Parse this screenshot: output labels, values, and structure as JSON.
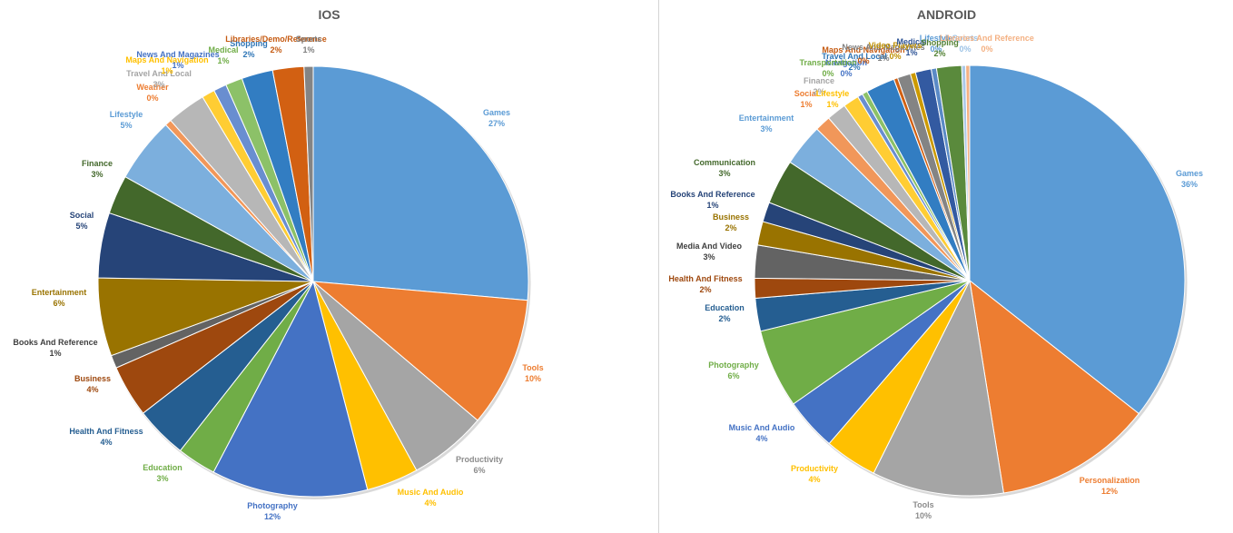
{
  "chart_data": [
    {
      "type": "pie",
      "title": "IOS",
      "slices": [
        {
          "label": "Games",
          "value": 27,
          "pct": "27%",
          "color": "#5b9bd5"
        },
        {
          "label": "Tools",
          "value": 10,
          "pct": "10%",
          "color": "#ed7d31"
        },
        {
          "label": "Productivity",
          "value": 6,
          "pct": "6%",
          "color": "#a5a5a5"
        },
        {
          "label": "Music And Audio",
          "value": 4,
          "pct": "4%",
          "color": "#ffc000"
        },
        {
          "label": "Photography",
          "value": 12,
          "pct": "12%",
          "color": "#4472c4"
        },
        {
          "label": "Education",
          "value": 3,
          "pct": "3%",
          "color": "#70ad47"
        },
        {
          "label": "Health And Fitness",
          "value": 4,
          "pct": "4%",
          "color": "#255e91"
        },
        {
          "label": "Business",
          "value": 4,
          "pct": "4%",
          "color": "#9e480e"
        },
        {
          "label": "Books And Reference",
          "value": 1,
          "pct": "1%",
          "color": "#636363"
        },
        {
          "label": "Entertainment",
          "value": 6,
          "pct": "6%",
          "color": "#997300"
        },
        {
          "label": "Social",
          "value": 5,
          "pct": "5%",
          "color": "#264478"
        },
        {
          "label": "Finance",
          "value": 3,
          "pct": "3%",
          "color": "#43682b"
        },
        {
          "label": "Lifestyle",
          "value": 5,
          "pct": "5%",
          "color": "#7cafdd"
        },
        {
          "label": "Weather",
          "value": 0.5,
          "pct": "0%",
          "color": "#f1975a"
        },
        {
          "label": "Travel And Local",
          "value": 3,
          "pct": "3%",
          "color": "#b7b7b7"
        },
        {
          "label": "Maps And Navigation",
          "value": 1,
          "pct": "1%",
          "color": "#ffcd33"
        },
        {
          "label": "News And Magazines",
          "value": 1,
          "pct": "1%",
          "color": "#698ed0"
        },
        {
          "label": "Medical",
          "value": 1.3,
          "pct": "1%",
          "color": "#8cc168"
        },
        {
          "label": "Shopping",
          "value": 2.4,
          "pct": "2%",
          "color": "#327dc2"
        },
        {
          "label": "Libraries/Demo/Reference",
          "value": 2.4,
          "pct": "2%",
          "color": "#d26012"
        },
        {
          "label": "Sports",
          "value": 0.7,
          "pct": "1%",
          "color": "#848484"
        }
      ]
    },
    {
      "type": "pie",
      "title": "ANDROID",
      "slices": [
        {
          "label": "Games",
          "value": 36,
          "pct": "36%",
          "color": "#5b9bd5"
        },
        {
          "label": "Personalization",
          "value": 12,
          "pct": "12%",
          "color": "#ed7d31"
        },
        {
          "label": "Tools",
          "value": 10,
          "pct": "10%",
          "color": "#a5a5a5"
        },
        {
          "label": "Productivity",
          "value": 4,
          "pct": "4%",
          "color": "#ffc000"
        },
        {
          "label": "Music And Audio",
          "value": 4,
          "pct": "4%",
          "color": "#4472c4"
        },
        {
          "label": "Photography",
          "value": 6,
          "pct": "6%",
          "color": "#70ad47"
        },
        {
          "label": "Education",
          "value": 2.5,
          "pct": "2%",
          "color": "#255e91"
        },
        {
          "label": "Health And Fitness",
          "value": 1.5,
          "pct": "2%",
          "color": "#9e480e"
        },
        {
          "label": "Media And Video",
          "value": 2.5,
          "pct": "3%",
          "color": "#636363"
        },
        {
          "label": "Business",
          "value": 1.8,
          "pct": "2%",
          "color": "#997300"
        },
        {
          "label": "Books And Reference",
          "value": 1.5,
          "pct": "1%",
          "color": "#264478"
        },
        {
          "label": "Communication",
          "value": 3.4,
          "pct": "3%",
          "color": "#43682b"
        },
        {
          "label": "Entertainment",
          "value": 3.2,
          "pct": "3%",
          "color": "#7cafdd"
        },
        {
          "label": "Social",
          "value": 1.2,
          "pct": "1%",
          "color": "#f1975a"
        },
        {
          "label": "Finance",
          "value": 1.5,
          "pct": "2%",
          "color": "#b7b7b7"
        },
        {
          "label": "Lifestyle",
          "value": 1.2,
          "pct": "1%",
          "color": "#ffcd33"
        },
        {
          "label": "Navigation",
          "value": 0.4,
          "pct": "0%",
          "color": "#698ed0"
        },
        {
          "label": "Transportation",
          "value": 0.4,
          "pct": "0%",
          "color": "#8cc168"
        },
        {
          "label": "Travel And Local",
          "value": 2.2,
          "pct": "2%",
          "color": "#327dc2"
        },
        {
          "label": "Maps And Navigation",
          "value": 0.3,
          "pct": "0%",
          "color": "#d26012"
        },
        {
          "label": "News And Magazines",
          "value": 1.0,
          "pct": "1%",
          "color": "#848484"
        },
        {
          "label": "Video Players",
          "value": 0.4,
          "pct": "0%",
          "color": "#cc9a00"
        },
        {
          "label": "Medical",
          "value": 1.2,
          "pct": "1%",
          "color": "#335aa1"
        },
        {
          "label": "Lifestyle2",
          "value": 0.4,
          "pct": "0%",
          "color": "#5a8ac6"
        },
        {
          "label": "Shopping",
          "value": 1.9,
          "pct": "2%",
          "color": "#5a8a3c"
        },
        {
          "label": "Sports",
          "value": 0.3,
          "pct": "0%",
          "color": "#aac8e8"
        },
        {
          "label": "Libraries And Reference",
          "value": 0.3,
          "pct": "0%",
          "color": "#f4b183"
        }
      ]
    }
  ],
  "ios_labels": [
    {
      "name": "Games",
      "pct": "27%",
      "color": "#5b9bd5"
    },
    {
      "name": "Tools",
      "pct": "10%",
      "color": "#ed7d31"
    },
    {
      "name": "Productivity",
      "pct": "6%",
      "color": "#8c8c8c"
    },
    {
      "name": "Music And Audio",
      "pct": "4%",
      "color": "#ffc000"
    },
    {
      "name": "Photography",
      "pct": "12%",
      "color": "#4472c4"
    },
    {
      "name": "Education",
      "pct": "3%",
      "color": "#70ad47"
    },
    {
      "name": "Health And Fitness",
      "pct": "4%",
      "color": "#255e91"
    },
    {
      "name": "Business",
      "pct": "4%",
      "color": "#9e480e"
    },
    {
      "name": "Books And Reference",
      "pct": "1%",
      "color": "#404040"
    },
    {
      "name": "Entertainment",
      "pct": "6%",
      "color": "#997300"
    },
    {
      "name": "Social",
      "pct": "5%",
      "color": "#264478"
    },
    {
      "name": "Finance",
      "pct": "3%",
      "color": "#43682b"
    },
    {
      "name": "Lifestyle",
      "pct": "5%",
      "color": "#5b9bd5"
    },
    {
      "name": "Weather",
      "pct": "0%",
      "color": "#ed7d31"
    },
    {
      "name": "Travel And Local",
      "pct": "3%",
      "color": "#a5a5a5"
    },
    {
      "name": "Maps And Navigation",
      "pct": "1%",
      "color": "#ffc000"
    },
    {
      "name": "News And Magazines",
      "pct": "1%",
      "color": "#4472c4"
    },
    {
      "name": "Medical",
      "pct": "1%",
      "color": "#70ad47"
    },
    {
      "name": "Shopping",
      "pct": "2%",
      "color": "#2e75b6"
    },
    {
      "name": "Libraries/Demo/Reference",
      "pct": "2%",
      "color": "#c55a11"
    },
    {
      "name": "Sports",
      "pct": "1%",
      "color": "#7f7f7f"
    }
  ],
  "android_labels": [
    {
      "name": "Games",
      "pct": "36%",
      "color": "#5b9bd5"
    },
    {
      "name": "Personalization",
      "pct": "12%",
      "color": "#ed7d31"
    },
    {
      "name": "Tools",
      "pct": "10%",
      "color": "#8c8c8c"
    },
    {
      "name": "Productivity",
      "pct": "4%",
      "color": "#ffc000"
    },
    {
      "name": "Music And Audio",
      "pct": "4%",
      "color": "#4472c4"
    },
    {
      "name": "Photography",
      "pct": "6%",
      "color": "#70ad47"
    },
    {
      "name": "Education",
      "pct": "2%",
      "color": "#255e91"
    },
    {
      "name": "Health And Fitness",
      "pct": "2%",
      "color": "#9e480e"
    },
    {
      "name": "Media And Video",
      "pct": "3%",
      "color": "#404040"
    },
    {
      "name": "Business",
      "pct": "2%",
      "color": "#997300"
    },
    {
      "name": "Books And Reference",
      "pct": "1%",
      "color": "#264478"
    },
    {
      "name": "Communication",
      "pct": "3%",
      "color": "#43682b"
    },
    {
      "name": "Entertainment",
      "pct": "3%",
      "color": "#5b9bd5"
    },
    {
      "name": "Social",
      "pct": "1%",
      "color": "#ed7d31"
    },
    {
      "name": "Finance",
      "pct": "2%",
      "color": "#a5a5a5"
    },
    {
      "name": "Lifestyle",
      "pct": "1%",
      "color": "#ffc000"
    },
    {
      "name": "Navigation",
      "pct": "0%",
      "color": "#4472c4"
    },
    {
      "name": "Transportation",
      "pct": "0%",
      "color": "#70ad47"
    },
    {
      "name": "Travel And Local",
      "pct": "2%",
      "color": "#2e75b6"
    },
    {
      "name": "Maps And Navigation",
      "pct": "0%",
      "color": "#c55a11"
    },
    {
      "name": "News And Magazines",
      "pct": "1%",
      "color": "#7f7f7f"
    },
    {
      "name": "Video Players",
      "pct": "0%",
      "color": "#bf9000"
    },
    {
      "name": "Medical",
      "pct": "1%",
      "color": "#2f5597"
    },
    {
      "name": "Lifestyle",
      "pct": "0%",
      "color": "#5b9bd5"
    },
    {
      "name": "Shopping",
      "pct": "2%",
      "color": "#548235"
    },
    {
      "name": "Sports",
      "pct": "0%",
      "color": "#9dc3e6"
    },
    {
      "name": "Libraries And Reference",
      "pct": "0%",
      "color": "#f4b183"
    }
  ]
}
